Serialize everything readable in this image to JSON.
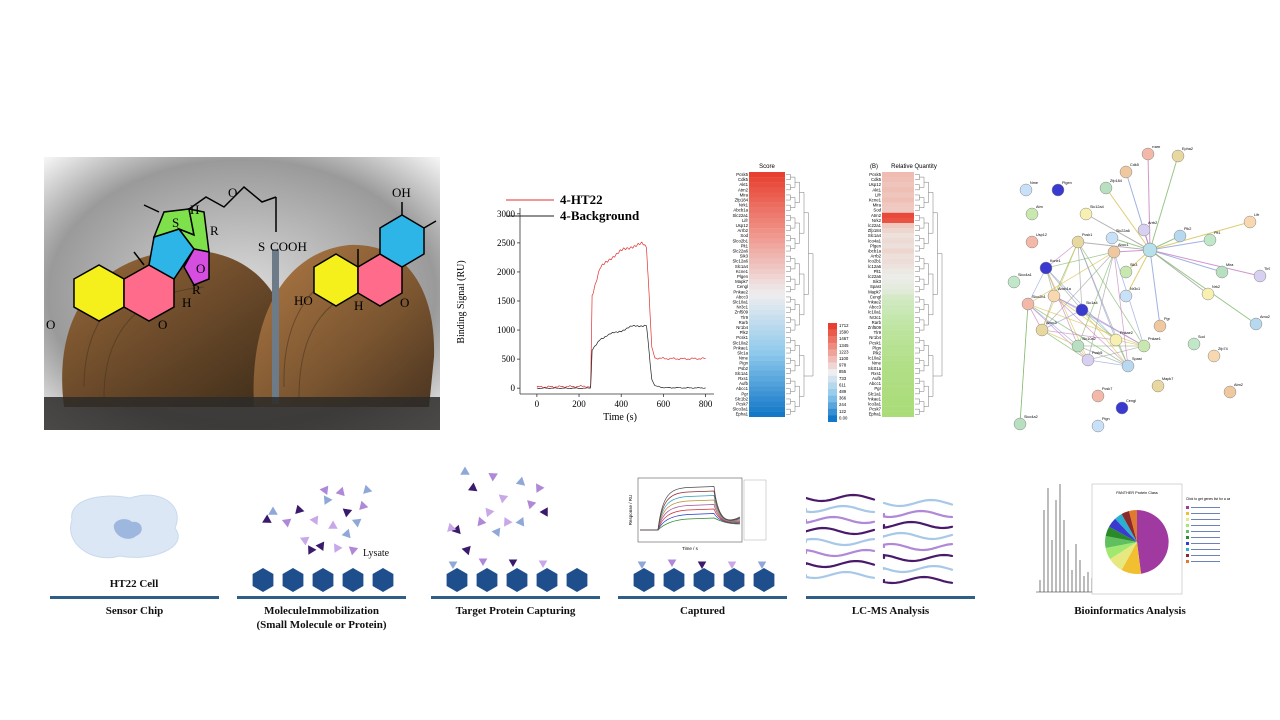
{
  "figure": {
    "accent_color": "#2f5f86",
    "chip_color": "#1f4e8c"
  },
  "spr_chart": {
    "legend": [
      {
        "name": "4-HT22",
        "color": "#e03030"
      },
      {
        "name": "4-Background",
        "color": "#222222"
      }
    ],
    "xlabel": "Time (s)",
    "ylabel": "Binding Signal (RU)",
    "xticks": [
      "0",
      "200",
      "400",
      "600",
      "800"
    ],
    "yticks": [
      "0",
      "500",
      "1000",
      "1500",
      "2000",
      "2500",
      "3000"
    ]
  },
  "chart_data": [
    {
      "type": "line",
      "xlabel": "Time (s)",
      "ylabel": "Binding Signal (RU)",
      "xlim": [
        -80,
        840
      ],
      "ylim": [
        -100,
        3100
      ],
      "grid": false,
      "legend_position": "top",
      "series": [
        {
          "name": "4-HT22",
          "color": "#e03030",
          "x": [
            0,
            100,
            200,
            255,
            262,
            300,
            350,
            400,
            450,
            500,
            520,
            545,
            560,
            600,
            700,
            800
          ],
          "y": [
            20,
            25,
            30,
            30,
            1600,
            2050,
            2250,
            2350,
            2450,
            2470,
            2450,
            700,
            520,
            510,
            505,
            510
          ]
        },
        {
          "name": "4-Background",
          "color": "#222222",
          "x": [
            0,
            100,
            200,
            255,
            262,
            300,
            350,
            400,
            450,
            500,
            520,
            545,
            560,
            600,
            700,
            800
          ],
          "y": [
            0,
            0,
            0,
            0,
            650,
            850,
            930,
            990,
            1060,
            1080,
            1070,
            150,
            40,
            10,
            5,
            5
          ]
        }
      ]
    }
  ],
  "heatmap_score": {
    "title": "Score",
    "rows": [
      "Pcsk5",
      "Cdk5",
      "Akt1",
      "Atm2",
      "Mira",
      "Zfp184",
      "Nrk1",
      "Abcb1a",
      "Slc22a1",
      "Lifr",
      "Usp12",
      "Arrb2",
      "Sod",
      "Slco2b1",
      "Plt1",
      "Slc22a6",
      "Sik3",
      "Slc12a6",
      "Slc1a4",
      "Kcne1",
      "Plgen",
      "Mapk7",
      "Cengl",
      "Pnkae2",
      "Abcc3",
      "Slc10a1",
      "Nr3c1",
      "Znf509",
      "Tlr9",
      "Rarb",
      "Nr1b4",
      "Plk2",
      "Pcsk1",
      "Slc10a2",
      "Pnkae1",
      "Slc1a",
      "Nme",
      "Pign",
      "Psb2",
      "Slc1a1",
      "Rxs1",
      "Aufb",
      "Abcc1",
      "Pgr",
      "Slc1b2",
      "Pcsk7",
      "Slco3a1",
      "Epha1"
    ],
    "scale": [
      "1712",
      "1590",
      "1467",
      "1345",
      "1223",
      "1100",
      "978",
      "855",
      "733",
      "611",
      "489",
      "366",
      "244",
      "122",
      "0.00"
    ]
  },
  "heatmap_quantity": {
    "panel_label": "(B)",
    "title": "Relative Quantity",
    "rows": [
      "Pcsk5",
      "Cdk5",
      "Usp12",
      "Akt1",
      "Lifr",
      "Kcne1",
      "Mira",
      "Sod",
      "Atm2",
      "Nrk2",
      "Slc22a1",
      "Zfp184",
      "Slc1a4",
      "Slco4a1",
      "Plgen",
      "Abcb1a",
      "Arrb2",
      "Slco2b1",
      "Slc12a6",
      "Plt1",
      "Slc22a6",
      "Sik3",
      "Spast",
      "Mapk7",
      "Cengl",
      "Pnkae2",
      "Abcc3",
      "Slc10a1",
      "Nr3c1",
      "Rarb",
      "Znf509",
      "Tlr9",
      "Nr1b4",
      "Pcsk1",
      "Plgn",
      "Plk2",
      "Slc10a2",
      "Nme",
      "Slc01a",
      "Rxs1",
      "Aufb",
      "Abcc1",
      "Pgr",
      "Slc1a1",
      "Pnkae1",
      "Slco3a1",
      "Pcsk7",
      "Epha1"
    ]
  },
  "network": {
    "nodes": [
      "Rarb",
      "Epha2",
      "Cdk5",
      "Nme",
      "Plgen",
      "Zfp184",
      "Atm",
      "Slc12a4",
      "Arrb2",
      "Plk2",
      "Plt1",
      "Lifr",
      "Usp12",
      "Pcsk1",
      "Abcc1",
      "Slc22a6",
      "Kcne1",
      "Mira",
      "Sik3",
      "Nrk2",
      "Tlr9",
      "Amo2",
      "Slco4a1",
      "Abcb1a",
      "Slco2b1",
      "Abcc3",
      "Pgr",
      "Nr3c1",
      "Slc1a4",
      "Slc10a2",
      "Pnkae1",
      "Pnkae2",
      "Pcsk5",
      "Spast",
      "Sod",
      "Zfp74",
      "Pcsk7",
      "Mapk7",
      "Atm2",
      "Pign",
      "Cengl",
      "Slco4a2"
    ]
  },
  "workflow": {
    "cell_label": "HT22 Cell",
    "lysate_label": "Lysate",
    "steps": [
      {
        "label": "Sensor Chip"
      },
      {
        "label": "MoleculeImmobilization\n(Small Molecule or Protein)"
      },
      {
        "label": "Target Protein Capturing"
      },
      {
        "label": "Captured"
      },
      {
        "label": "LC-MS Analysis"
      },
      {
        "label": "Bioinformatics Analysis"
      }
    ]
  },
  "structure_left": {
    "atoms": [
      "H",
      "S",
      "R",
      "O",
      "R",
      "H",
      "O",
      "O",
      "O",
      "S",
      "COOH"
    ]
  },
  "structure_right": {
    "atoms": [
      "OH",
      "HO",
      "H",
      "O"
    ]
  },
  "mini_spr": {
    "xlabel": "Time / s",
    "ylabel": "Response / RU"
  },
  "pie_panel": {
    "title": "PANTHER Protein Class",
    "legend_title": "Click to get genes list for a category"
  }
}
